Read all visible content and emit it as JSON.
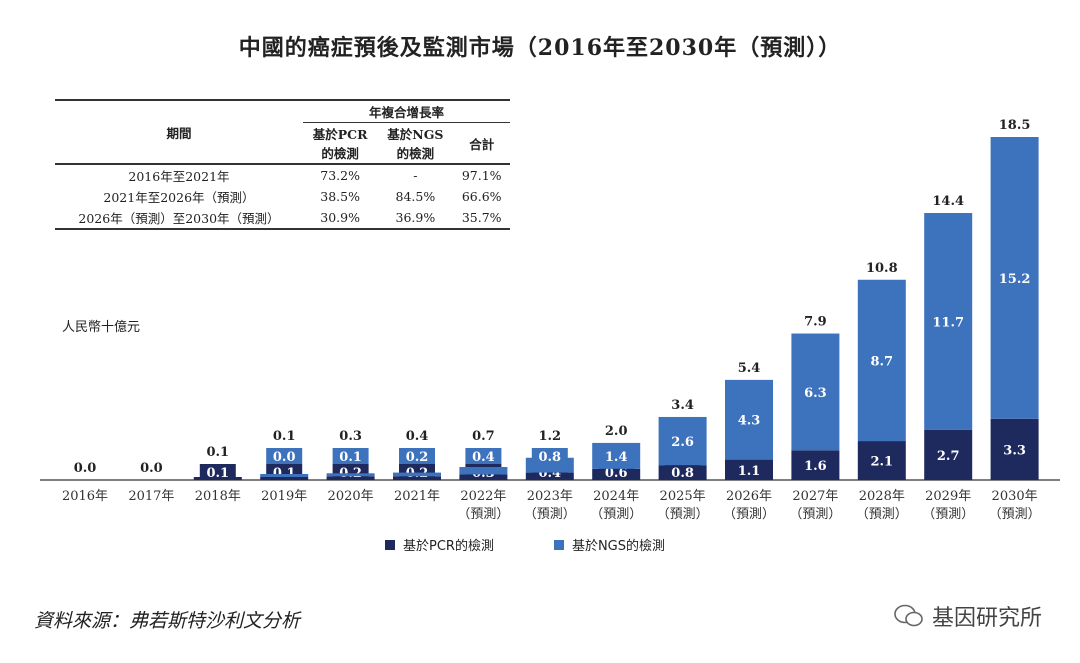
{
  "chart_data": {
    "type": "bar",
    "stacked": true,
    "title": "中國的癌症預後及監測市場（2016年至2030年（預測））",
    "ylabel": "人民幣十億元",
    "categories": [
      "2016年",
      "2017年",
      "2018年",
      "2019年",
      "2020年",
      "2021年",
      "2022年",
      "2023年",
      "2024年",
      "2025年",
      "2026年",
      "2027年",
      "2028年",
      "2029年",
      "2030年"
    ],
    "category_sublabels": [
      "",
      "",
      "",
      "",
      "",
      "",
      "（預測）",
      "（預測）",
      "（預測）",
      "（預測）",
      "（預測）",
      "（預測）",
      "（預測）",
      "（預測）",
      "（預測）"
    ],
    "series": [
      {
        "name": "基於PCR的檢測",
        "color": "#1e2a5e",
        "values": [
          null,
          null,
          0.1,
          0.1,
          0.2,
          0.2,
          0.3,
          0.4,
          0.6,
          0.8,
          1.1,
          1.6,
          2.1,
          2.7,
          3.3
        ]
      },
      {
        "name": "基於NGS的檢測",
        "color": "#3d72bd",
        "values": [
          null,
          null,
          null,
          0.0,
          0.1,
          0.2,
          0.4,
          0.8,
          1.4,
          2.6,
          4.3,
          6.3,
          8.7,
          11.7,
          15.2
        ]
      }
    ],
    "totals": [
      0.0,
      0.0,
      0.1,
      0.1,
      0.3,
      0.4,
      0.7,
      1.2,
      2.0,
      3.4,
      5.4,
      7.9,
      10.8,
      14.4,
      18.5
    ],
    "ylim": [
      0,
      18.5
    ],
    "legend": "bottom"
  },
  "table": {
    "group_header": "年複合增長率",
    "headers": [
      "期間",
      "基於PCR的檢測",
      "基於NGS的檢測",
      "合計"
    ],
    "header_lines": [
      [
        "期間",
        ""
      ],
      [
        "基於PCR",
        "的檢測"
      ],
      [
        "基於NGS",
        "的檢測"
      ],
      [
        "合計",
        ""
      ]
    ],
    "rows": [
      [
        "2016年至2021年",
        "73.2%",
        "-",
        "97.1%"
      ],
      [
        "2021年至2026年（預測）",
        "38.5%",
        "84.5%",
        "66.6%"
      ],
      [
        "2026年（預測）至2030年（預測）",
        "30.9%",
        "36.9%",
        "35.7%"
      ]
    ]
  },
  "source": "資料來源：弗若斯特沙利文分析",
  "watermark": "基因研究所"
}
